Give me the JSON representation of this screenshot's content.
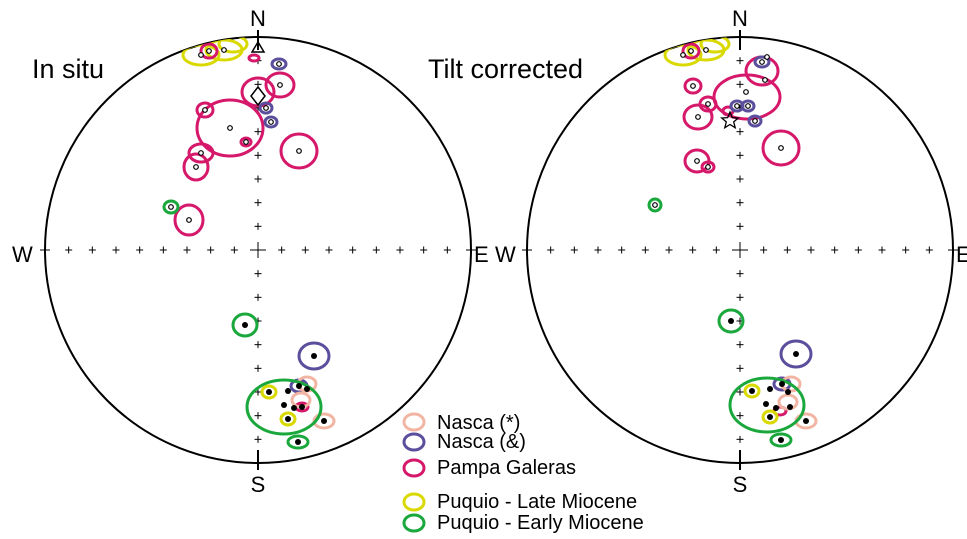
{
  "figure": {
    "panels": [
      {
        "title": "In situ",
        "directions": {
          "north": "N",
          "south": "S",
          "west": "W",
          "east": "E"
        }
      },
      {
        "title": "Tilt corrected",
        "directions": {
          "north": "N",
          "south": "S",
          "west": "W",
          "east": "E"
        }
      }
    ],
    "legend": [
      {
        "label": "Nasca (*)",
        "color": "#f2b5a4"
      },
      {
        "label": "Nasca (&)",
        "color": "#5b4f9d"
      },
      {
        "label": "Pampa Galeras",
        "color": "#d6186b"
      },
      {
        "label": "Puquio - Late Miocene",
        "color": "#d9d900"
      },
      {
        "label": "Puquio - Early Miocene",
        "color": "#1aa83c"
      }
    ]
  }
}
